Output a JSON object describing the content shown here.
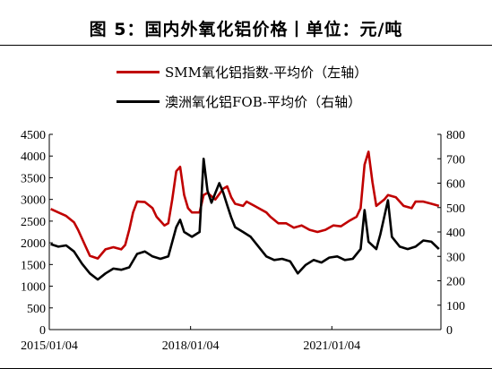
{
  "figure_title": "图 5：国内外氧化铝价格丨单位：元/吨",
  "chart_data": {
    "type": "line",
    "title": "",
    "grid": false,
    "legend_position": "top",
    "x_ticks": [
      "2015/01/04",
      "2018/01/04",
      "2021/01/04"
    ],
    "y_left": {
      "range": [
        0,
        4500
      ],
      "ticks": [
        0,
        500,
        1000,
        1500,
        2000,
        2500,
        3000,
        3500,
        4000,
        4500
      ]
    },
    "y_right": {
      "range": [
        0,
        800
      ],
      "ticks": [
        0,
        100,
        200,
        300,
        400,
        500,
        600,
        700,
        800
      ]
    },
    "series": [
      {
        "name": "SMM氧化铝指数-平均价（左轴）",
        "color": "#c00000",
        "axis": "left",
        "points": [
          [
            "2015-01",
            2780
          ],
          [
            "2015-03",
            2700
          ],
          [
            "2015-05",
            2620
          ],
          [
            "2015-07",
            2470
          ],
          [
            "2015-08",
            2300
          ],
          [
            "2015-10",
            1900
          ],
          [
            "2015-11",
            1700
          ],
          [
            "2016-01",
            1640
          ],
          [
            "2016-03",
            1850
          ],
          [
            "2016-05",
            1900
          ],
          [
            "2016-07",
            1850
          ],
          [
            "2016-08",
            1950
          ],
          [
            "2016-09",
            2300
          ],
          [
            "2016-10",
            2700
          ],
          [
            "2016-11",
            2950
          ],
          [
            "2017-01",
            2940
          ],
          [
            "2017-03",
            2800
          ],
          [
            "2017-04",
            2600
          ],
          [
            "2017-06",
            2400
          ],
          [
            "2017-07",
            2450
          ],
          [
            "2017-08",
            3000
          ],
          [
            "2017-09",
            3650
          ],
          [
            "2017-10",
            3750
          ],
          [
            "2017-11",
            3100
          ],
          [
            "2017-12",
            2800
          ],
          [
            "2018-01",
            2700
          ],
          [
            "2018-03",
            2700
          ],
          [
            "2018-04",
            3100
          ],
          [
            "2018-05",
            3150
          ],
          [
            "2018-07",
            3000
          ],
          [
            "2018-09",
            3250
          ],
          [
            "2018-10",
            3300
          ],
          [
            "2018-11",
            3050
          ],
          [
            "2018-12",
            2900
          ],
          [
            "2019-02",
            2850
          ],
          [
            "2019-03",
            2950
          ],
          [
            "2019-05",
            2850
          ],
          [
            "2019-06",
            2800
          ],
          [
            "2019-08",
            2700
          ],
          [
            "2019-09",
            2600
          ],
          [
            "2019-11",
            2450
          ],
          [
            "2020-01",
            2450
          ],
          [
            "2020-03",
            2350
          ],
          [
            "2020-05",
            2400
          ],
          [
            "2020-07",
            2300
          ],
          [
            "2020-09",
            2250
          ],
          [
            "2020-11",
            2300
          ],
          [
            "2021-01",
            2400
          ],
          [
            "2021-03",
            2380
          ],
          [
            "2021-05",
            2500
          ],
          [
            "2021-07",
            2600
          ],
          [
            "2021-08",
            2800
          ],
          [
            "2021-09",
            3800
          ],
          [
            "2021-10",
            4100
          ],
          [
            "2021-11",
            3400
          ],
          [
            "2021-12",
            2850
          ],
          [
            "2022-02",
            3000
          ],
          [
            "2022-03",
            3100
          ],
          [
            "2022-05",
            3050
          ],
          [
            "2022-07",
            2850
          ],
          [
            "2022-09",
            2800
          ],
          [
            "2022-10",
            2950
          ],
          [
            "2022-12",
            2950
          ],
          [
            "2023-02",
            2900
          ],
          [
            "2023-04",
            2850
          ]
        ]
      },
      {
        "name": "澳洲氧化铝FOB-平均价（右轴）",
        "color": "#000000",
        "axis": "right",
        "points": [
          [
            "2015-01",
            350
          ],
          [
            "2015-03",
            340
          ],
          [
            "2015-05",
            345
          ],
          [
            "2015-07",
            320
          ],
          [
            "2015-09",
            270
          ],
          [
            "2015-11",
            230
          ],
          [
            "2016-01",
            205
          ],
          [
            "2016-03",
            230
          ],
          [
            "2016-05",
            250
          ],
          [
            "2016-07",
            245
          ],
          [
            "2016-09",
            255
          ],
          [
            "2016-11",
            310
          ],
          [
            "2017-01",
            320
          ],
          [
            "2017-03",
            300
          ],
          [
            "2017-05",
            290
          ],
          [
            "2017-07",
            300
          ],
          [
            "2017-09",
            420
          ],
          [
            "2017-10",
            450
          ],
          [
            "2017-11",
            400
          ],
          [
            "2018-01",
            380
          ],
          [
            "2018-03",
            400
          ],
          [
            "2018-04",
            700
          ],
          [
            "2018-05",
            570
          ],
          [
            "2018-06",
            520
          ],
          [
            "2018-07",
            560
          ],
          [
            "2018-08",
            600
          ],
          [
            "2018-09",
            560
          ],
          [
            "2018-10",
            510
          ],
          [
            "2018-11",
            460
          ],
          [
            "2018-12",
            420
          ],
          [
            "2019-02",
            400
          ],
          [
            "2019-04",
            380
          ],
          [
            "2019-06",
            340
          ],
          [
            "2019-08",
            300
          ],
          [
            "2019-10",
            285
          ],
          [
            "2019-12",
            290
          ],
          [
            "2020-02",
            280
          ],
          [
            "2020-04",
            230
          ],
          [
            "2020-06",
            265
          ],
          [
            "2020-08",
            285
          ],
          [
            "2020-10",
            275
          ],
          [
            "2020-12",
            295
          ],
          [
            "2021-02",
            300
          ],
          [
            "2021-04",
            285
          ],
          [
            "2021-06",
            290
          ],
          [
            "2021-08",
            330
          ],
          [
            "2021-09",
            490
          ],
          [
            "2021-10",
            360
          ],
          [
            "2021-12",
            330
          ],
          [
            "2022-01",
            390
          ],
          [
            "2022-03",
            530
          ],
          [
            "2022-04",
            380
          ],
          [
            "2022-06",
            340
          ],
          [
            "2022-08",
            330
          ],
          [
            "2022-10",
            340
          ],
          [
            "2022-12",
            365
          ],
          [
            "2023-02",
            360
          ],
          [
            "2023-04",
            330
          ]
        ]
      }
    ]
  }
}
